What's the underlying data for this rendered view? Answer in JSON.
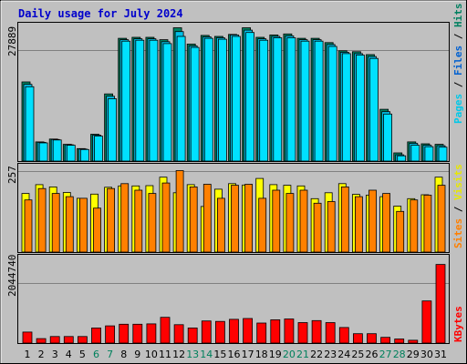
{
  "title": "Daily usage for July 2024",
  "colors": {
    "background": "#c0c0c0",
    "plot": "#c0c0c0",
    "title": "#0000cc",
    "pages": "#00e0ff",
    "files": "#00c0e8",
    "hits": "#008060",
    "visits": "#ffff00",
    "sites": "#ff8000",
    "kbytes": "#ff0000",
    "weekend_day": "#00805c",
    "weekday": "#000000",
    "sep": "#000000"
  },
  "labels": {
    "top_axis_max": "27889",
    "mid_axis_max": "257",
    "bot_axis_max": "2044740",
    "right_pages": "Pages",
    "right_files": "Files",
    "right_hits": "Hits",
    "right_sites": "Sites",
    "right_visits": "Visits",
    "right_kbytes": "KBytes",
    "sep": " / "
  },
  "chart_data": [
    {
      "type": "bar",
      "title": "Daily usage for July 2024",
      "ylabel": "Pages / Files / Hits",
      "ylim": [
        0,
        27889
      ],
      "categories": [
        "1",
        "2",
        "3",
        "4",
        "5",
        "6",
        "7",
        "8",
        "9",
        "10",
        "11",
        "12",
        "13",
        "14",
        "15",
        "16",
        "17",
        "18",
        "19",
        "20",
        "21",
        "22",
        "23",
        "24",
        "25",
        "26",
        "27",
        "28",
        "29",
        "30",
        "31"
      ],
      "weekend_days": [
        "6",
        "7",
        "13",
        "14",
        "20",
        "21",
        "27",
        "28"
      ],
      "series": [
        {
          "name": "Hits",
          "values": [
            16500,
            4000,
            4600,
            3500,
            2600,
            5600,
            14000,
            25600,
            25800,
            25800,
            25300,
            27800,
            24400,
            26200,
            26000,
            26400,
            27800,
            25800,
            26300,
            26500,
            25600,
            25600,
            24700,
            23000,
            22800,
            22200,
            10800,
            1700,
            4000,
            3600,
            3500
          ]
        },
        {
          "name": "Files",
          "values": [
            16000,
            3900,
            4500,
            3400,
            2500,
            5400,
            13500,
            25300,
            25500,
            25500,
            24900,
            27000,
            24000,
            25900,
            25700,
            26300,
            27300,
            25500,
            26000,
            26100,
            25300,
            25300,
            24300,
            22700,
            22400,
            21800,
            10300,
            1300,
            3700,
            3300,
            3200
          ]
        },
        {
          "name": "Pages",
          "values": [
            15500,
            3800,
            4400,
            3300,
            2400,
            5200,
            13000,
            25000,
            25200,
            25200,
            24500,
            26000,
            23700,
            25600,
            25400,
            26000,
            26800,
            25200,
            25700,
            25700,
            25000,
            25000,
            23900,
            22400,
            22100,
            21400,
            9800,
            1100,
            3300,
            3000,
            2900
          ]
        }
      ]
    },
    {
      "type": "bar",
      "ylabel": "Sites / Visits",
      "ylim": [
        0,
        257
      ],
      "categories": [
        "1",
        "2",
        "3",
        "4",
        "5",
        "6",
        "7",
        "8",
        "9",
        "10",
        "11",
        "12",
        "13",
        "14",
        "15",
        "16",
        "17",
        "18",
        "19",
        "20",
        "21",
        "22",
        "23",
        "24",
        "25",
        "26",
        "27",
        "28",
        "29",
        "30",
        "31"
      ],
      "series": [
        {
          "name": "Visits",
          "values": [
            180,
            207,
            200,
            183,
            165,
            178,
            199,
            203,
            203,
            204,
            230,
            182,
            207,
            140,
            193,
            210,
            206,
            226,
            207,
            205,
            203,
            164,
            182,
            210,
            177,
            175,
            170,
            141,
            164,
            176,
            230
          ]
        },
        {
          "name": "Sites",
          "values": [
            160,
            195,
            180,
            170,
            165,
            135,
            195,
            210,
            190,
            180,
            212,
            250,
            200,
            208,
            165,
            205,
            208,
            165,
            190,
            180,
            190,
            150,
            155,
            200,
            170,
            190,
            180,
            125,
            160,
            175,
            205
          ]
        }
      ]
    },
    {
      "type": "bar",
      "ylabel": "KBytes",
      "ylim": [
        0,
        2044740
      ],
      "categories": [
        "1",
        "2",
        "3",
        "4",
        "5",
        "6",
        "7",
        "8",
        "9",
        "10",
        "11",
        "12",
        "13",
        "14",
        "15",
        "16",
        "17",
        "18",
        "19",
        "20",
        "21",
        "22",
        "23",
        "24",
        "25",
        "26",
        "27",
        "28",
        "29",
        "30",
        "31"
      ],
      "series": [
        {
          "name": "KBytes",
          "values": [
            270000,
            110000,
            160000,
            160000,
            160000,
            370000,
            420000,
            460000,
            460000,
            470000,
            630000,
            450000,
            370000,
            540000,
            530000,
            580000,
            600000,
            490000,
            570000,
            590000,
            500000,
            550000,
            500000,
            380000,
            230000,
            230000,
            140000,
            100000,
            70000,
            1030000,
            1920000
          ]
        }
      ]
    }
  ]
}
